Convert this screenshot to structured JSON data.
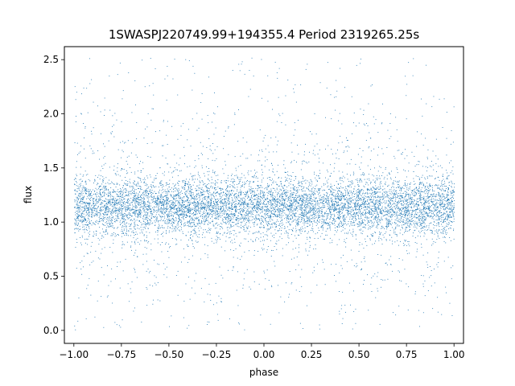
{
  "chart_data": {
    "type": "scatter",
    "title": "1SWASPJ220749.99+194355.4 Period 2319265.25s",
    "xlabel": "phase",
    "ylabel": "flux",
    "xlim": [
      -1.05,
      1.05
    ],
    "ylim": [
      -0.12,
      2.62
    ],
    "grid": false,
    "legend": "none",
    "marker_color": "#1f77b4",
    "x_ticks": [
      -1.0,
      -0.75,
      -0.5,
      -0.25,
      0.0,
      0.25,
      0.5,
      0.75,
      1.0
    ],
    "x_tick_labels": [
      "−1.00",
      "−0.75",
      "−0.50",
      "−0.25",
      "0.00",
      "0.25",
      "0.50",
      "0.75",
      "1.00"
    ],
    "y_ticks": [
      0.0,
      0.5,
      1.0,
      1.5,
      2.0,
      2.5
    ],
    "y_tick_labels": [
      "0.0",
      "0.5",
      "1.0",
      "1.5",
      "2.0",
      "2.5"
    ],
    "series": [
      {
        "x_range": [
          -1.0,
          1.0
        ],
        "flux_center": 1.15,
        "typical_spread": [
          0.85,
          1.5
        ],
        "outlier_range": [
          0.0,
          2.52
        ],
        "note_dense_vertical_streaks": true
      }
    ]
  }
}
